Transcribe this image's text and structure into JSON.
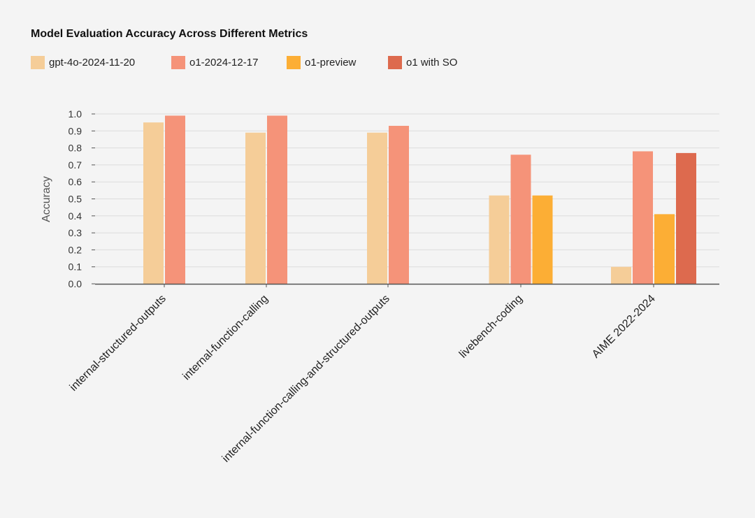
{
  "chart_data": {
    "type": "bar",
    "title": "Model Evaluation Accuracy Across Different Metrics",
    "xlabel": "",
    "ylabel": "Accuracy",
    "ylim": [
      0,
      1.0
    ],
    "yticks": [
      "0.0",
      "0.1",
      "0.2",
      "0.3",
      "0.4",
      "0.5",
      "0.6",
      "0.7",
      "0.8",
      "0.9",
      "1.0"
    ],
    "grid": true,
    "legend_position": "top-left",
    "categories": [
      "internal-structured-outputs",
      "internal-function-calling",
      "internal-function-calling-and-structured-outputs",
      "livebench-coding",
      "AIME 2022-2024"
    ],
    "series": [
      {
        "name": "gpt-4o-2024-11-20",
        "color": "#f5cd98",
        "values": [
          0.95,
          0.89,
          0.89,
          0.52,
          0.1
        ]
      },
      {
        "name": "o1-2024-12-17",
        "color": "#f59379",
        "values": [
          0.99,
          0.99,
          0.93,
          0.76,
          0.78
        ]
      },
      {
        "name": "o1-preview",
        "color": "#fcae35",
        "values": [
          null,
          null,
          null,
          0.52,
          0.41
        ]
      },
      {
        "name": "o1 with SO",
        "color": "#dd6a4e",
        "values": [
          null,
          null,
          null,
          null,
          0.77
        ]
      }
    ]
  }
}
